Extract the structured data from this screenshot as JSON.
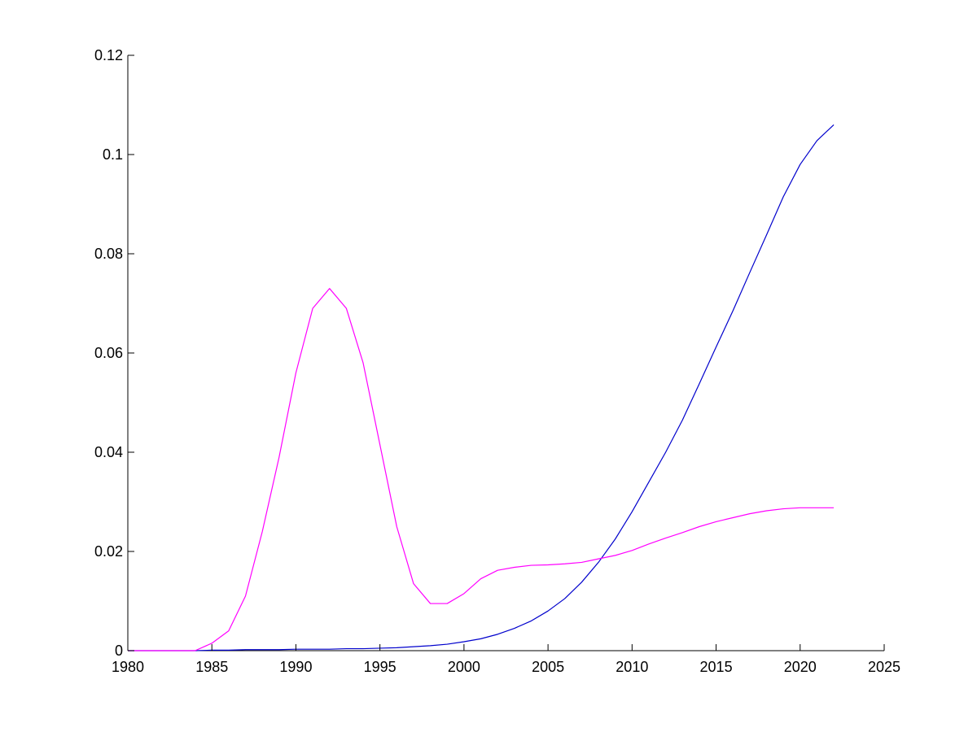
{
  "chart_data": {
    "type": "line",
    "title": "",
    "xlabel": "",
    "ylabel": "",
    "xlim": [
      1980,
      2025
    ],
    "ylim": [
      0,
      0.12
    ],
    "xticks": [
      "1980",
      "1985",
      "1990",
      "1995",
      "2000",
      "2005",
      "2010",
      "2015",
      "2020",
      "2025"
    ],
    "yticks": [
      "0",
      "0.02",
      "0.04",
      "0.06",
      "0.08",
      "0.1",
      "0.12"
    ],
    "grid": false,
    "legend": "none",
    "series": [
      {
        "color": "#0000cc",
        "x": [
          1980,
          1981,
          1982,
          1983,
          1984,
          1985,
          1986,
          1987,
          1988,
          1989,
          1990,
          1991,
          1992,
          1993,
          1994,
          1995,
          1996,
          1997,
          1998,
          1999,
          2000,
          2001,
          2002,
          2003,
          2004,
          2005,
          2006,
          2007,
          2008,
          2009,
          2010,
          2011,
          2012,
          2013,
          2014,
          2015,
          2016,
          2017,
          2018,
          2019,
          2020,
          2021,
          2022
        ],
        "y": [
          0,
          0,
          0,
          0,
          0,
          0.0001,
          0.0001,
          0.0002,
          0.0002,
          0.0002,
          0.0003,
          0.0003,
          0.0003,
          0.0004,
          0.0004,
          0.0005,
          0.0006,
          0.0008,
          0.001,
          0.0013,
          0.0018,
          0.0024,
          0.0033,
          0.0045,
          0.006,
          0.008,
          0.0105,
          0.0138,
          0.0178,
          0.0225,
          0.028,
          0.034,
          0.04,
          0.0465,
          0.0538,
          0.0612,
          0.0685,
          0.0762,
          0.0838,
          0.0915,
          0.098,
          0.1028,
          0.106
        ]
      },
      {
        "color": "#ff00ff",
        "x": [
          1980,
          1981,
          1982,
          1983,
          1984,
          1985,
          1986,
          1987,
          1988,
          1989,
          1990,
          1991,
          1992,
          1993,
          1994,
          1995,
          1996,
          1997,
          1998,
          1999,
          2000,
          2001,
          2002,
          2003,
          2004,
          2005,
          2006,
          2007,
          2008,
          2009,
          2010,
          2011,
          2012,
          2013,
          2014,
          2015,
          2016,
          2017,
          2018,
          2019,
          2020,
          2021,
          2022
        ],
        "y": [
          0,
          0,
          0,
          0,
          0,
          0.0015,
          0.004,
          0.011,
          0.024,
          0.039,
          0.056,
          0.069,
          0.073,
          0.069,
          0.058,
          0.0415,
          0.025,
          0.0135,
          0.0095,
          0.0095,
          0.0115,
          0.0145,
          0.0162,
          0.0168,
          0.0172,
          0.0173,
          0.0175,
          0.0178,
          0.0185,
          0.0192,
          0.0202,
          0.0215,
          0.0227,
          0.0238,
          0.025,
          0.026,
          0.0268,
          0.0276,
          0.0282,
          0.0286,
          0.0288,
          0.0288,
          0.0288
        ]
      }
    ]
  }
}
